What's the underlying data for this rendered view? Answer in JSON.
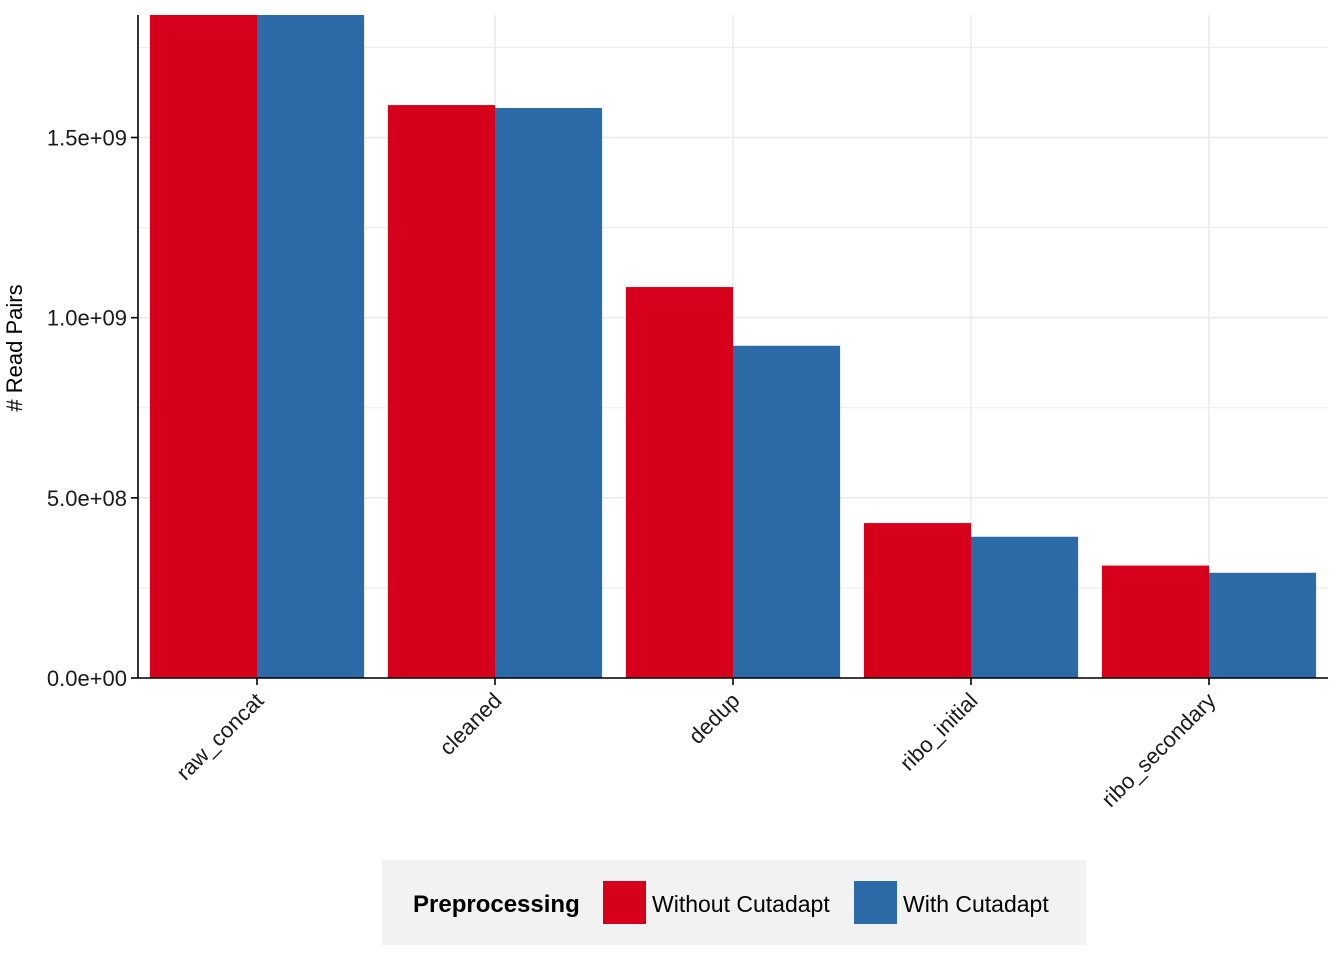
{
  "chart_data": {
    "type": "bar",
    "title": "",
    "xlabel": "",
    "ylabel": "# Read Pairs",
    "categories": [
      "raw_concat",
      "cleaned",
      "dedup",
      "ribo_initial",
      "ribo_secondary"
    ],
    "series": [
      {
        "name": "Without Cutadapt",
        "color": "#d7001b",
        "values": [
          1900000000,
          1590000000,
          1085000000,
          430000000,
          312000000
        ]
      },
      {
        "name": "With Cutadapt",
        "color": "#2c6aa8",
        "values": [
          1900000000,
          1582000000,
          922000000,
          392000000,
          292000000
        ]
      }
    ],
    "ylim": [
      0,
      1840000000
    ],
    "yticks": [
      0,
      500000000,
      1000000000,
      1500000000
    ],
    "ytick_labels": [
      "0.0e+00",
      "5.0e+08",
      "1.0e+09",
      "1.5e+09"
    ],
    "grid": true,
    "legend": {
      "title": "Preprocessing",
      "position": "bottom"
    }
  }
}
